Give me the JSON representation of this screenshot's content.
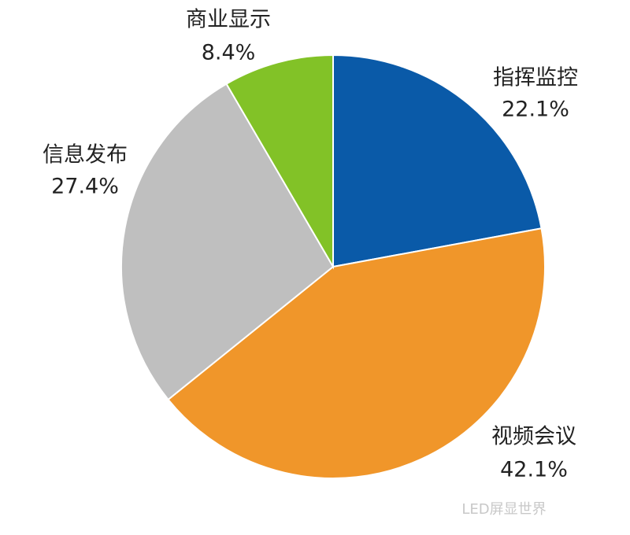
{
  "chart_data": {
    "type": "pie",
    "categories": [
      "指挥监控",
      "视频会议",
      "信息发布",
      "商业显示"
    ],
    "values": [
      22.1,
      42.1,
      27.4,
      8.4
    ],
    "value_labels": [
      "22.1%",
      "42.1%",
      "27.4%",
      "8.4%"
    ],
    "colors": [
      "#0a5aa8",
      "#f0962a",
      "#bfbfbf",
      "#82c227"
    ],
    "watermark": "LED屏显世界"
  }
}
